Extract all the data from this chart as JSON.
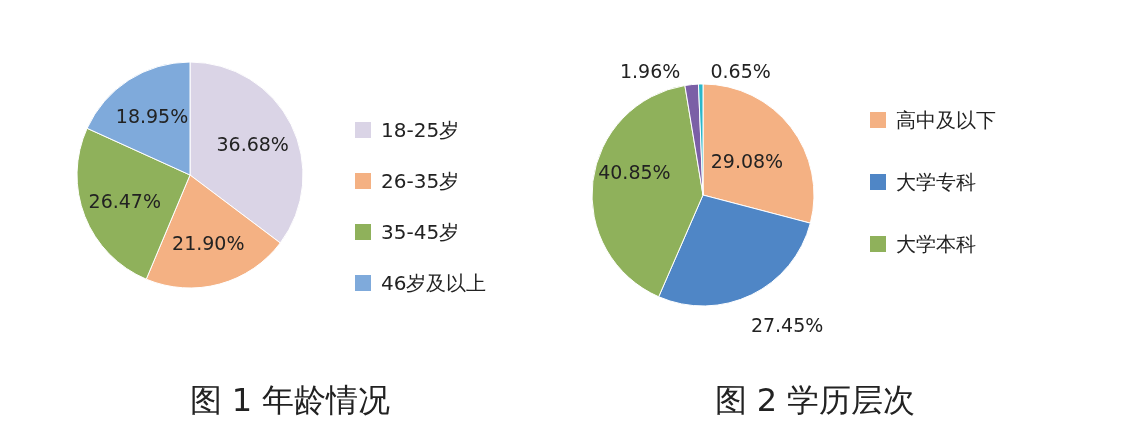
{
  "chart_data": [
    {
      "type": "pie",
      "title": "图 1 年龄情况",
      "categories": [
        "18-25岁",
        "26-35岁",
        "35-45岁",
        "46岁及以上"
      ],
      "values": [
        36.68,
        21.9,
        26.47,
        18.95
      ],
      "value_labels": [
        "36.68%",
        "21.90%",
        "26.47%",
        "18.95%"
      ],
      "colors": [
        "#dad4e6",
        "#f4b183",
        "#8fb15b",
        "#7faadb"
      ],
      "legend": "right"
    },
    {
      "type": "pie",
      "title": "图 2 学历层次",
      "categories": [
        "高中及以下",
        "大学专科",
        "大学本科",
        null,
        null
      ],
      "values": [
        29.08,
        27.45,
        40.85,
        1.96,
        0.65
      ],
      "value_labels": [
        "29.08%",
        "27.45%",
        "40.85%",
        "1.96%",
        "0.65%"
      ],
      "colors": [
        "#f4b183",
        "#4f86c6",
        "#8fb15b",
        "#7b5fa6",
        "#2bb7c9"
      ],
      "legend": "right"
    }
  ]
}
